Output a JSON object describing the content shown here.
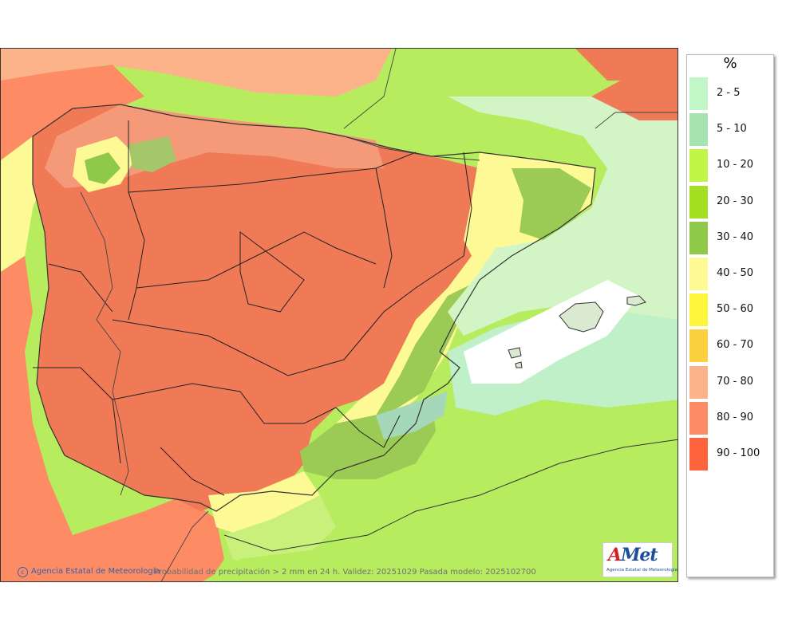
{
  "legend": {
    "unit": "%",
    "items": [
      {
        "label": "2 - 5",
        "color": "#c1f7c6"
      },
      {
        "label": "5 - 10",
        "color": "#a5e3b0"
      },
      {
        "label": "10 - 20",
        "color": "#c1f547"
      },
      {
        "label": "20 - 30",
        "color": "#a4e021"
      },
      {
        "label": "30 - 40",
        "color": "#8ec94a"
      },
      {
        "label": "40 - 50",
        "color": "#fdfa96"
      },
      {
        "label": "50 - 60",
        "color": "#fdf63c"
      },
      {
        "label": "60 - 70",
        "color": "#fdd13e"
      },
      {
        "label": "70 - 80",
        "color": "#fdb38a"
      },
      {
        "label": "80 - 90",
        "color": "#fd8b64"
      },
      {
        "label": "90 - 100",
        "color": "#fd643c"
      }
    ]
  },
  "credit": "Agencia Estatal de Meteorología",
  "caption": "Probabilidad de precipitación > 2 mm en 24 h. Validez: 20251029 Pasada modelo: 2025102700",
  "logo": {
    "text_main": "Met",
    "text_accent": "A",
    "subtitle": "Agencia Estatal de Meteorología"
  }
}
